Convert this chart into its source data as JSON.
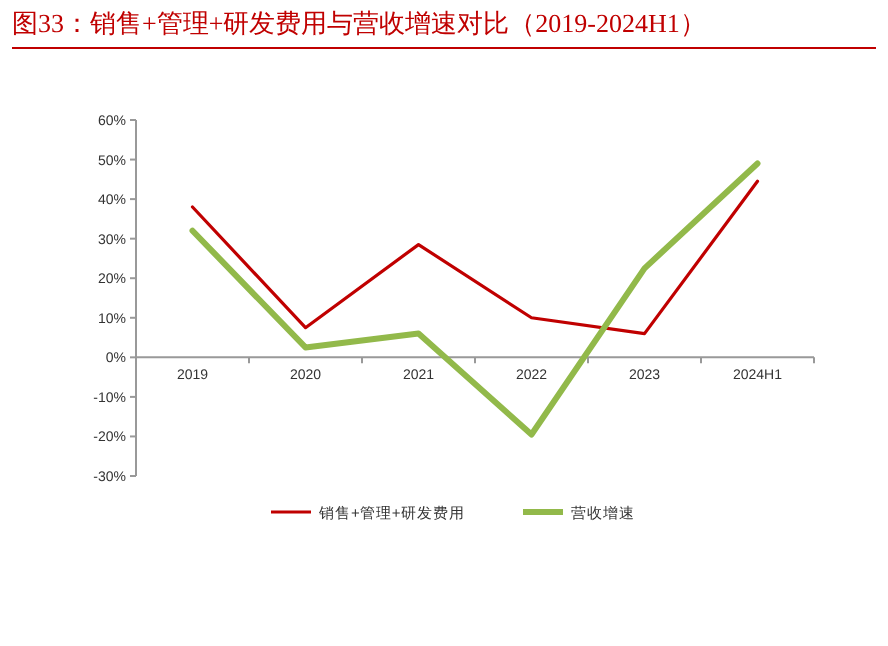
{
  "chart_data": {
    "type": "line",
    "title": "图33：销售+管理+研发费用与营收增速对比（2019-2024H1）",
    "categories": [
      "2019",
      "2020",
      "2021",
      "2022",
      "2023",
      "2024H1"
    ],
    "series": [
      {
        "name": "销售+管理+研发费用",
        "color": "#c00000",
        "values": [
          38,
          7.5,
          28.5,
          10,
          6,
          44.5
        ]
      },
      {
        "name": "营收增速",
        "color": "#92b94a",
        "values": [
          32,
          2.5,
          6,
          -19.5,
          22.5,
          49
        ]
      }
    ],
    "ylim": [
      -30,
      60
    ],
    "yticks": [
      {
        "value": 60,
        "label": "60%"
      },
      {
        "value": 50,
        "label": "50%"
      },
      {
        "value": 40,
        "label": "40%"
      },
      {
        "value": 30,
        "label": "30%"
      },
      {
        "value": 20,
        "label": "20%"
      },
      {
        "value": 10,
        "label": "10%"
      },
      {
        "value": 0,
        "label": "0%"
      },
      {
        "value": -10,
        "label": "-10%"
      },
      {
        "value": -20,
        "label": "-20%"
      },
      {
        "value": -30,
        "label": "-30%"
      }
    ],
    "legend": "bottom",
    "grid": false
  }
}
